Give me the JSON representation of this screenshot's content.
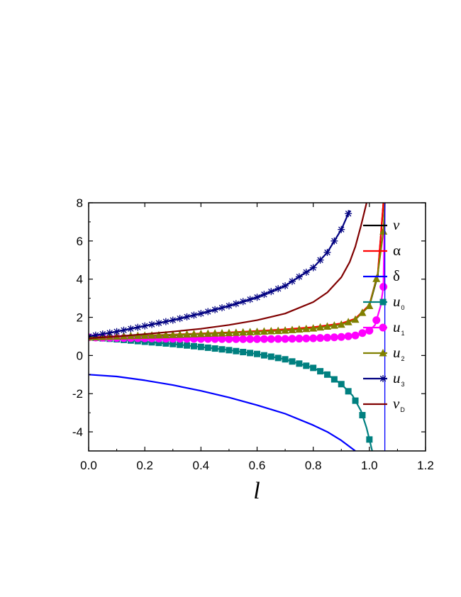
{
  "chart_data": {
    "type": "line",
    "title": "",
    "xlabel": "l",
    "ylabel": "",
    "xlim": [
      0.0,
      1.2
    ],
    "ylim": [
      -5,
      8
    ],
    "xticks": [
      "0.0",
      "0.2",
      "0.4",
      "0.6",
      "0.8",
      "1.0",
      "1.2"
    ],
    "yticks": [
      "8",
      "6",
      "4",
      "2",
      "0",
      "-2",
      "-4"
    ],
    "grid": false,
    "legend_position": "top-right inside",
    "vertical_line_x": 1.055,
    "series": [
      {
        "name": "v",
        "sub": "",
        "color": "#000000",
        "marker": "none",
        "x": [
          0.0,
          0.1,
          0.2,
          0.3,
          0.4,
          0.5,
          0.6,
          0.7,
          0.8,
          0.9,
          0.95,
          1.0,
          1.03,
          1.05
        ],
        "y": [
          0.9,
          0.95,
          1.0,
          1.06,
          1.12,
          1.18,
          1.25,
          1.34,
          1.45,
          1.65,
          1.9,
          2.6,
          4.2,
          8.0
        ]
      },
      {
        "name": "α",
        "sub": "",
        "color": "#ff0000",
        "marker": "none",
        "x": [
          0.0,
          0.1,
          0.2,
          0.3,
          0.4,
          0.5,
          0.6,
          0.7,
          0.8,
          0.9,
          0.95,
          1.0,
          1.03,
          1.05
        ],
        "y": [
          0.95,
          1.0,
          1.05,
          1.1,
          1.15,
          1.21,
          1.28,
          1.37,
          1.48,
          1.68,
          1.93,
          2.65,
          4.3,
          8.0
        ]
      },
      {
        "name": "δ",
        "sub": "",
        "color": "#0000ff",
        "marker": "none",
        "x": [
          0.0,
          0.1,
          0.2,
          0.3,
          0.4,
          0.5,
          0.6,
          0.7,
          0.8,
          0.85,
          0.9,
          0.95
        ],
        "y": [
          -1.0,
          -1.1,
          -1.3,
          -1.55,
          -1.85,
          -2.2,
          -2.6,
          -3.05,
          -3.65,
          -4.0,
          -4.45,
          -5.0
        ]
      },
      {
        "name": "u",
        "sub": "0",
        "color": "#008080",
        "marker": "square",
        "x": [
          0.0,
          0.1,
          0.2,
          0.3,
          0.4,
          0.5,
          0.6,
          0.7,
          0.8,
          0.85,
          0.9,
          0.94,
          0.97,
          0.99,
          1.01
        ],
        "y": [
          0.95,
          0.85,
          0.72,
          0.6,
          0.45,
          0.28,
          0.08,
          -0.2,
          -0.65,
          -1.0,
          -1.5,
          -2.1,
          -2.9,
          -3.8,
          -5.0
        ]
      },
      {
        "name": "u",
        "sub": "1",
        "color": "#ff00ff",
        "marker": "circle",
        "x": [
          0.0,
          0.1,
          0.2,
          0.3,
          0.4,
          0.5,
          0.6,
          0.7,
          0.8,
          0.9,
          0.95,
          1.0,
          1.02,
          1.04,
          1.05,
          1.055
        ],
        "y": [
          0.95,
          0.92,
          0.9,
          0.88,
          0.87,
          0.86,
          0.86,
          0.87,
          0.9,
          0.97,
          1.05,
          1.3,
          1.6,
          2.6,
          3.6,
          8.0
        ]
      },
      {
        "name": "u",
        "sub": "2",
        "color": "#808000",
        "marker": "triangle",
        "x": [
          0.0,
          0.1,
          0.2,
          0.3,
          0.4,
          0.5,
          0.6,
          0.7,
          0.8,
          0.9,
          0.95,
          1.0,
          1.03,
          1.05,
          1.055
        ],
        "y": [
          0.95,
          1.0,
          1.04,
          1.08,
          1.13,
          1.18,
          1.24,
          1.31,
          1.42,
          1.62,
          1.88,
          2.6,
          4.3,
          6.5,
          8.0
        ]
      },
      {
        "name": "u",
        "sub": "3",
        "color": "#000080",
        "marker": "star",
        "x": [
          0.0,
          0.1,
          0.2,
          0.3,
          0.4,
          0.5,
          0.6,
          0.7,
          0.8,
          0.85,
          0.9,
          0.93
        ],
        "y": [
          1.0,
          1.25,
          1.55,
          1.85,
          2.2,
          2.6,
          3.05,
          3.65,
          4.6,
          5.4,
          6.6,
          7.6
        ]
      },
      {
        "name": "v",
        "sub": "D",
        "color": "#800000",
        "marker": "none",
        "x": [
          0.0,
          0.1,
          0.2,
          0.3,
          0.4,
          0.5,
          0.6,
          0.7,
          0.8,
          0.85,
          0.9,
          0.93,
          0.95,
          0.97,
          0.99
        ],
        "y": [
          0.9,
          1.0,
          1.12,
          1.25,
          1.4,
          1.6,
          1.85,
          2.2,
          2.8,
          3.3,
          4.1,
          4.9,
          5.7,
          6.8,
          8.0
        ]
      }
    ]
  }
}
